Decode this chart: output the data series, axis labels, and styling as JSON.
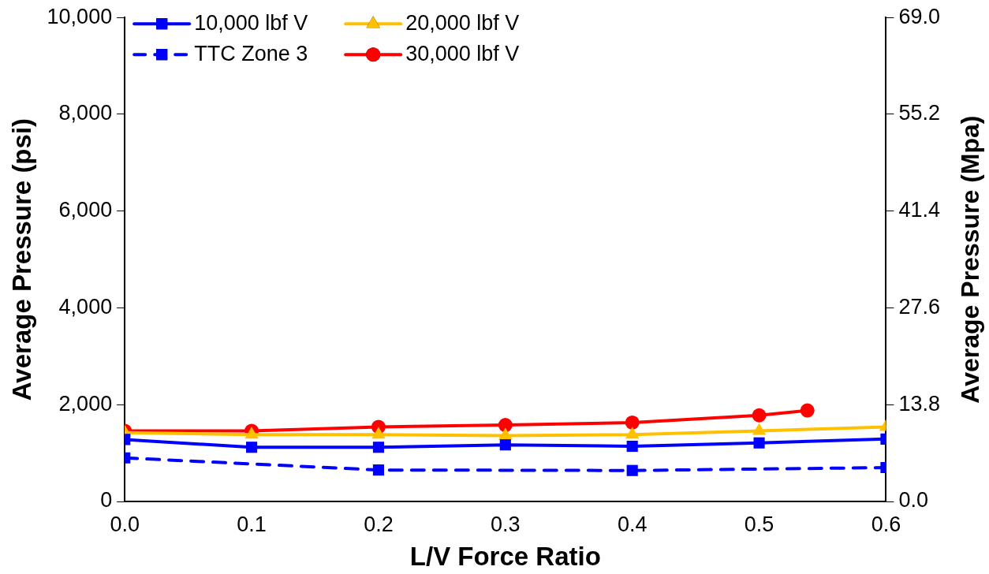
{
  "chart_data": {
    "type": "line",
    "xlabel": "L/V Force Ratio",
    "ylabel": "Average Pressure (psi)",
    "y2label": "Average Pressure (Mpa)",
    "xlim": [
      0,
      0.6
    ],
    "xticks": [
      {
        "value": 0,
        "label": "0.0"
      },
      0.1,
      0.2,
      0.3,
      0.4,
      0.5,
      0.6
    ],
    "ylim": [
      0,
      10000
    ],
    "yticks": [
      0,
      {
        "value": 2000,
        "label": "2,000"
      },
      {
        "value": 4000,
        "label": "4,000"
      },
      {
        "value": 6000,
        "label": "6,000"
      },
      {
        "value": 8000,
        "label": "8,000"
      },
      {
        "value": 10000,
        "label": "10,000"
      }
    ],
    "y2lim": [
      0,
      69
    ],
    "y2ticks": [
      {
        "value": 0,
        "label": "0.0"
      },
      13.8,
      27.6,
      41.4,
      55.2,
      {
        "value": 69,
        "label": "69.0"
      }
    ],
    "grid": false,
    "legend": "top left",
    "series": [
      {
        "name": "10,000 lbf V",
        "color": "#0000ff",
        "marker": "square",
        "line_style": "solid",
        "x": [
          0,
          0.1,
          0.2,
          0.3,
          0.4,
          0.5,
          0.6
        ],
        "values": [
          1280,
          1120,
          1120,
          1170,
          1140,
          1210,
          1290
        ]
      },
      {
        "name": "20,000 lbf V",
        "color": "#ffc000",
        "marker": "triangle",
        "line_style": "solid",
        "x": [
          0,
          0.1,
          0.2,
          0.3,
          0.4,
          0.5,
          0.6
        ],
        "values": [
          1420,
          1380,
          1380,
          1360,
          1380,
          1460,
          1540
        ]
      },
      {
        "name": "TTC Zone 3",
        "color": "#0000ff",
        "marker": "square",
        "line_style": "dashed",
        "x": [
          0,
          0.2,
          0.4,
          0.6
        ],
        "values": [
          900,
          650,
          640,
          700
        ]
      },
      {
        "name": "30,000 lbf V",
        "color": "#ff0000",
        "marker": "circle",
        "line_style": "solid",
        "x": [
          0,
          0.1,
          0.2,
          0.3,
          0.4,
          0.5,
          0.538
        ],
        "values": [
          1460,
          1460,
          1540,
          1580,
          1630,
          1780,
          1880
        ]
      }
    ]
  }
}
